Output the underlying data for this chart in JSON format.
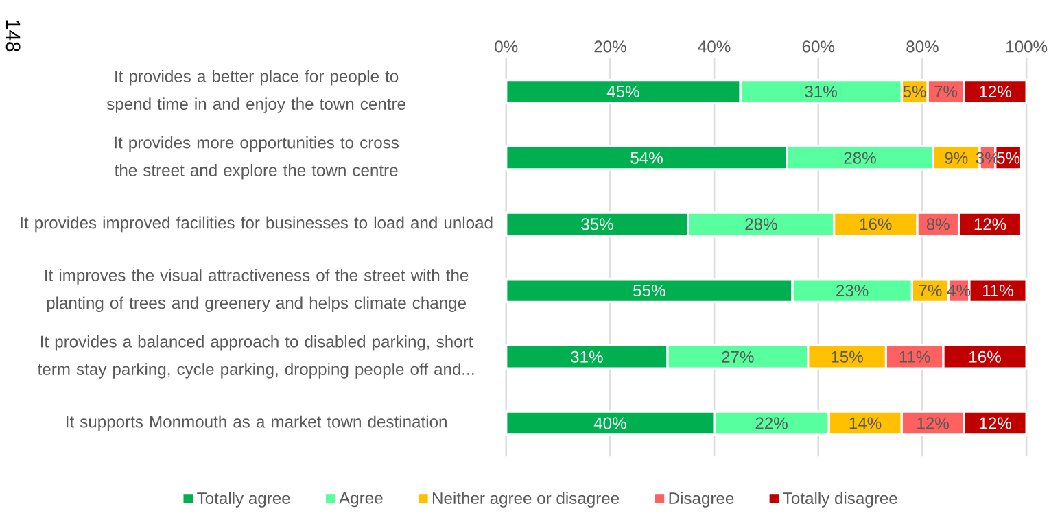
{
  "chart_data": {
    "type": "bar",
    "orientation": "horizontal",
    "stacked": true,
    "categories": [
      "It provides a better place for people to spend time in and enjoy the town centre",
      "It provides more opportunities to cross the street and explore the town centre",
      "It provides improved facilities for businesses to load and unload",
      "It improves the visual attractiveness of the street with the planting of trees and greenery and helps climate change",
      "It provides a balanced approach to disabled parking, short term stay parking, cycle parking, dropping people off and...",
      "It supports Monmouth as a market town destination"
    ],
    "series": [
      {
        "name": "Totally agree",
        "color": "#00b050",
        "values": [
          45,
          54,
          35,
          55,
          31,
          40
        ],
        "value_labels": [
          "45%",
          "54%",
          "35%",
          "55%",
          "31%",
          "40%"
        ]
      },
      {
        "name": "Agree",
        "color": "#57ff9f",
        "values": [
          31,
          28,
          28,
          23,
          27,
          22
        ],
        "value_labels": [
          "31%",
          "28%",
          "28%",
          "23%",
          "27%",
          "22%"
        ]
      },
      {
        "name": "Neither agree or disagree",
        "color": "#ffc000",
        "values": [
          5,
          9,
          16,
          7,
          15,
          14
        ],
        "value_labels": [
          "5%",
          "9%",
          "16%",
          "7%",
          "15%",
          "14%"
        ]
      },
      {
        "name": "Disagree",
        "color": "#ff6161",
        "values": [
          7,
          3,
          8,
          4,
          11,
          12
        ],
        "value_labels": [
          "7%",
          "3%",
          "8%",
          "4%",
          "11%",
          "12%"
        ]
      },
      {
        "name": "Totally disagree",
        "color": "#c00000",
        "values": [
          12,
          5,
          12,
          11,
          16,
          12
        ],
        "value_labels": [
          "12%",
          "5%",
          "12%",
          "11%",
          "16%",
          "12%"
        ]
      }
    ],
    "xlim": [
      0,
      100
    ],
    "xticks": [
      {
        "value": 0,
        "label": "0%"
      },
      {
        "value": 20,
        "label": "20%"
      },
      {
        "value": 40,
        "label": "40%"
      },
      {
        "value": 60,
        "label": "60%"
      },
      {
        "value": 80,
        "label": "80%"
      },
      {
        "value": 100,
        "label": "100%"
      }
    ],
    "grid": "x",
    "legend": "bottom",
    "annotations": [
      "148"
    ]
  }
}
